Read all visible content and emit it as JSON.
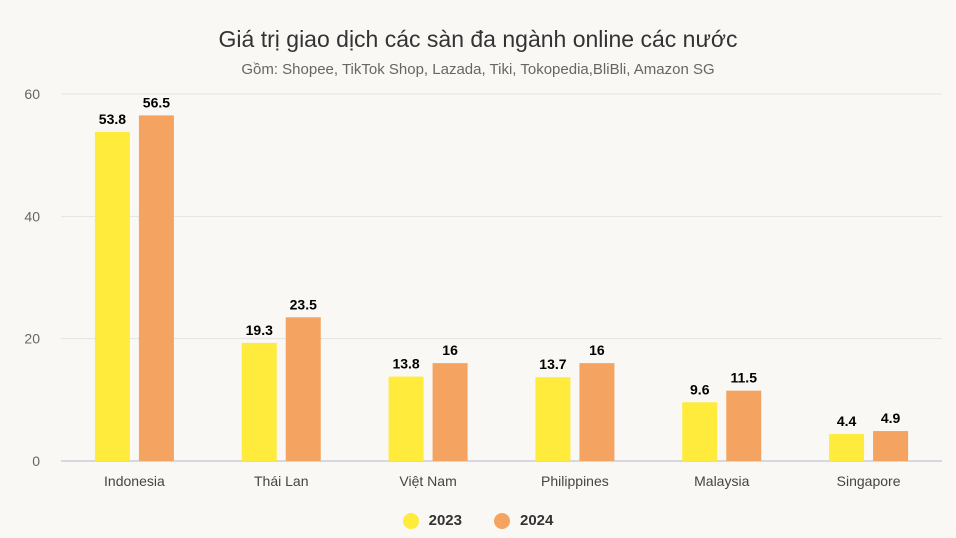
{
  "chart_data": {
    "type": "bar",
    "title": "Giá trị giao dịch các sàn đa ngành online các nước",
    "subtitle": "Gồm: Shopee, TikTok Shop, Lazada, Tiki, Tokopedia,BliBli, Amazon SG",
    "categories": [
      "Indonesia",
      "Thái Lan",
      "Việt Nam",
      "Philippines",
      "Malaysia",
      "Singapore"
    ],
    "series": [
      {
        "name": "2023",
        "color": "#ffeb3b",
        "values": [
          53.8,
          19.3,
          13.8,
          13.7,
          9.6,
          4.4
        ],
        "labels": [
          "53.8",
          "19.3",
          "13.8",
          "13.7",
          "9.6",
          "4.4"
        ]
      },
      {
        "name": "2024",
        "color": "#f4a460",
        "values": [
          56.5,
          23.5,
          16,
          16,
          11.5,
          4.9
        ],
        "labels": [
          "56.5",
          "23.5",
          "16",
          "16",
          "11.5",
          "4.9"
        ]
      }
    ],
    "ylim": [
      0,
      60
    ],
    "yticks": [
      "0",
      "20",
      "40",
      "60"
    ],
    "grid": true,
    "legend_position": "bottom"
  }
}
